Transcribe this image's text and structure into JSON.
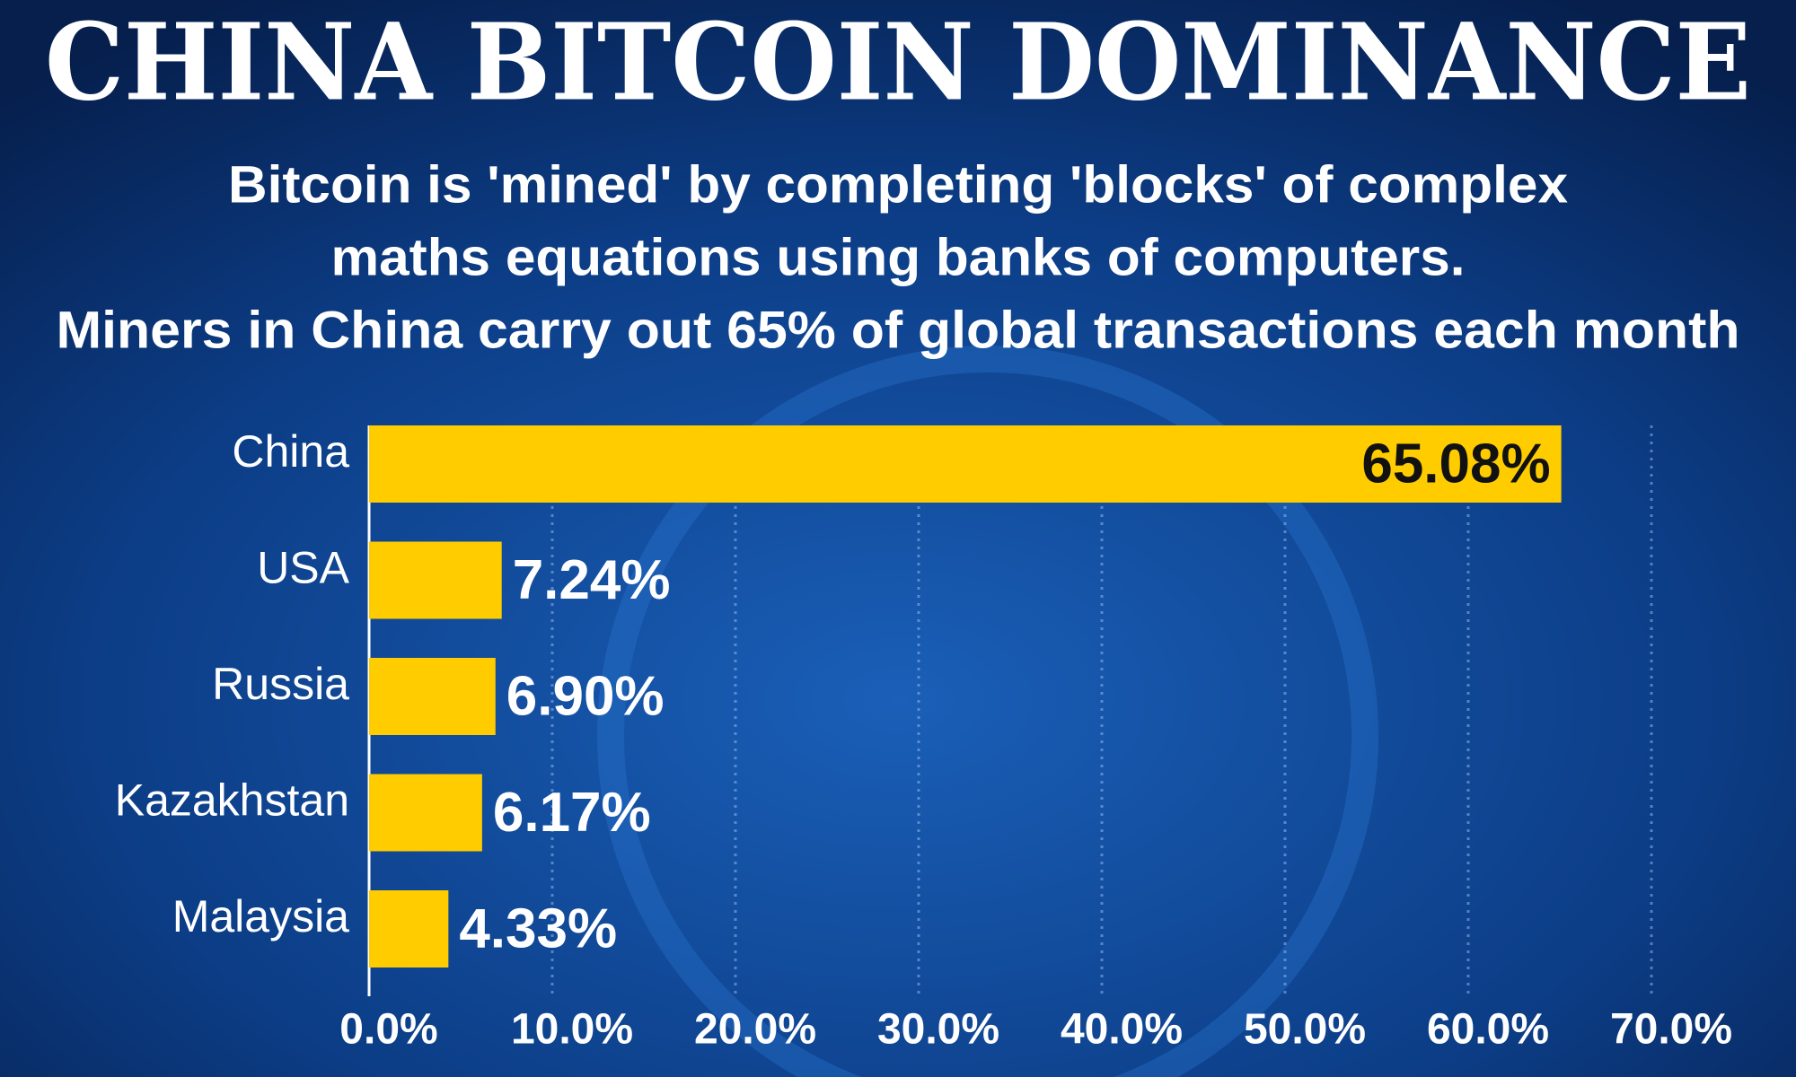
{
  "chart_data": {
    "type": "bar",
    "orientation": "horizontal",
    "title": "CHINA BITCOIN DOMINANCE",
    "subtitle": [
      "Bitcoin is 'mined' by completing 'blocks' of complex",
      "maths equations using banks of computers.",
      "Miners in China carry out 65% of global transactions each month"
    ],
    "categories": [
      "China",
      "USA",
      "Russia",
      "Kazakhstan",
      "Malaysia"
    ],
    "values": [
      65.08,
      7.24,
      6.9,
      6.17,
      4.33
    ],
    "value_labels": [
      "65.08%",
      "7.24%",
      "6.90%",
      "6.17%",
      "4.33%"
    ],
    "color": "#ffcc00",
    "xlim": [
      0,
      70
    ],
    "xticks": [
      {
        "value": 0,
        "label": "0.0%"
      },
      {
        "value": 10,
        "label": "10.0%"
      },
      {
        "value": 20,
        "label": "20.0%"
      },
      {
        "value": 30,
        "label": "30.0%"
      },
      {
        "value": 40,
        "label": "40.0%"
      },
      {
        "value": 50,
        "label": "50.0%"
      },
      {
        "value": 60,
        "label": "60.0%"
      },
      {
        "value": 70,
        "label": "70.0%"
      }
    ],
    "grid": true
  }
}
